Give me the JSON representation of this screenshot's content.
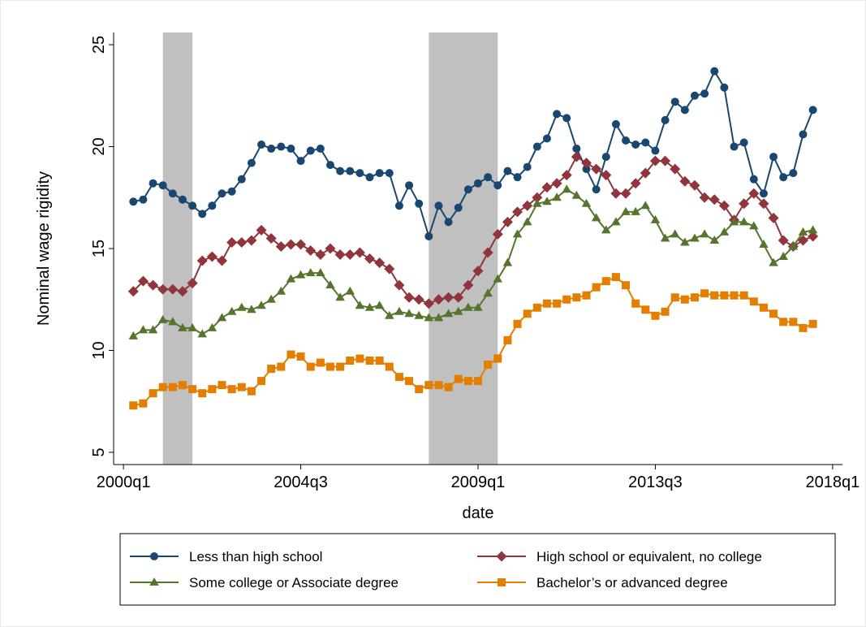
{
  "chart_data": {
    "type": "line",
    "x_label": "date",
    "y_label": "Nominal wage rigidity",
    "x": [
      "2000q2",
      "2000q3",
      "2000q4",
      "2001q1",
      "2001q2",
      "2001q3",
      "2001q4",
      "2002q1",
      "2002q2",
      "2002q3",
      "2002q4",
      "2003q1",
      "2003q2",
      "2003q3",
      "2003q4",
      "2004q1",
      "2004q2",
      "2004q3",
      "2004q4",
      "2005q1",
      "2005q2",
      "2005q3",
      "2005q4",
      "2006q1",
      "2006q2",
      "2006q3",
      "2006q4",
      "2007q1",
      "2007q2",
      "2007q3",
      "2007q4",
      "2008q1",
      "2008q2",
      "2008q3",
      "2008q4",
      "2009q1",
      "2009q2",
      "2009q3",
      "2009q4",
      "2010q1",
      "2010q2",
      "2010q3",
      "2010q4",
      "2011q1",
      "2011q2",
      "2011q3",
      "2011q4",
      "2012q1",
      "2012q2",
      "2012q3",
      "2012q4",
      "2013q1",
      "2013q2",
      "2013q3",
      "2013q4",
      "2014q1",
      "2014q2",
      "2014q3",
      "2014q4",
      "2015q1",
      "2015q2",
      "2015q3",
      "2015q4",
      "2016q1",
      "2016q2",
      "2016q3",
      "2016q4",
      "2017q1",
      "2017q2",
      "2017q3"
    ],
    "xlim": [
      "1999q4",
      "2018q2"
    ],
    "xticks": [
      "2000q1",
      "2004q3",
      "2009q1",
      "2013q3",
      "2018q1"
    ],
    "ylim": [
      4.4,
      25.6
    ],
    "yticks": [
      5,
      10,
      15,
      20,
      25
    ],
    "recessions": [
      [
        "2001q1",
        "2001q3"
      ],
      [
        "2007q4",
        "2009q2"
      ]
    ],
    "recession_color": "#c0c0c0",
    "series": [
      {
        "name": "Less than high school",
        "color": "#1a476f",
        "marker": "circle",
        "values": [
          17.3,
          17.4,
          18.2,
          18.1,
          17.7,
          17.4,
          17.1,
          16.7,
          17.1,
          17.7,
          17.8,
          18.4,
          19.2,
          20.1,
          19.9,
          20.0,
          19.9,
          19.3,
          19.8,
          19.9,
          19.1,
          18.8,
          18.8,
          18.7,
          18.5,
          18.7,
          18.7,
          17.1,
          18.1,
          17.2,
          15.6,
          17.1,
          16.3,
          17.0,
          17.9,
          18.2,
          18.5,
          18.1,
          18.8,
          18.5,
          19.0,
          20.0,
          20.4,
          21.6,
          21.4,
          19.9,
          18.9,
          17.9,
          19.5,
          21.1,
          20.3,
          20.1,
          20.2,
          19.8,
          21.3,
          22.2,
          21.8,
          22.5,
          22.6,
          23.7,
          22.9,
          20.0,
          20.2,
          18.4,
          17.7,
          19.5,
          18.5,
          18.7,
          20.6,
          21.8
        ]
      },
      {
        "name": "High school or equivalent, no college",
        "color": "#90353b",
        "marker": "diamond",
        "values": [
          12.9,
          13.4,
          13.2,
          13.0,
          13.0,
          12.9,
          13.3,
          14.4,
          14.6,
          14.4,
          15.3,
          15.3,
          15.4,
          15.9,
          15.5,
          15.1,
          15.2,
          15.2,
          14.9,
          14.7,
          15.0,
          14.7,
          14.7,
          14.8,
          14.5,
          14.3,
          14.0,
          13.2,
          12.6,
          12.5,
          12.3,
          12.5,
          12.6,
          12.6,
          13.2,
          13.9,
          14.8,
          15.7,
          16.3,
          16.8,
          17.1,
          17.5,
          18.0,
          18.2,
          18.6,
          19.5,
          19.2,
          18.9,
          18.6,
          17.7,
          17.7,
          18.2,
          18.7,
          19.3,
          19.3,
          18.9,
          18.3,
          18.1,
          17.5,
          17.4,
          17.1,
          16.4,
          17.2,
          17.7,
          17.2,
          16.5,
          15.4,
          15.1,
          15.4,
          15.6
        ]
      },
      {
        "name": "Some college or Associate degree",
        "color": "#55752f",
        "marker": "triangle",
        "values": [
          10.7,
          11.0,
          11.0,
          11.5,
          11.4,
          11.1,
          11.1,
          10.8,
          11.1,
          11.6,
          11.9,
          12.1,
          12.0,
          12.2,
          12.5,
          12.9,
          13.5,
          13.7,
          13.8,
          13.8,
          13.2,
          12.6,
          12.9,
          12.2,
          12.1,
          12.2,
          11.7,
          11.9,
          11.8,
          11.7,
          11.6,
          11.6,
          11.8,
          11.9,
          12.1,
          12.1,
          12.8,
          13.5,
          14.3,
          15.7,
          16.3,
          17.2,
          17.3,
          17.5,
          17.9,
          17.6,
          17.2,
          16.5,
          15.9,
          16.3,
          16.8,
          16.8,
          17.1,
          16.4,
          15.5,
          15.7,
          15.3,
          15.5,
          15.7,
          15.4,
          15.8,
          16.3,
          16.3,
          16.1,
          15.2,
          14.3,
          14.6,
          15.1,
          15.8,
          15.9
        ]
      },
      {
        "name": "Bachelor’s or advanced degree",
        "color": "#e37e00",
        "marker": "square",
        "values": [
          7.3,
          7.4,
          7.9,
          8.2,
          8.2,
          8.3,
          8.1,
          7.9,
          8.1,
          8.3,
          8.1,
          8.2,
          8.0,
          8.5,
          9.1,
          9.2,
          9.8,
          9.7,
          9.2,
          9.4,
          9.2,
          9.2,
          9.5,
          9.6,
          9.5,
          9.5,
          9.2,
          8.7,
          8.5,
          8.1,
          8.3,
          8.3,
          8.2,
          8.6,
          8.5,
          8.5,
          9.3,
          9.6,
          10.5,
          11.3,
          11.8,
          12.1,
          12.3,
          12.3,
          12.5,
          12.6,
          12.7,
          13.1,
          13.4,
          13.6,
          13.2,
          12.3,
          12.0,
          11.7,
          11.9,
          12.6,
          12.5,
          12.6,
          12.8,
          12.7,
          12.7,
          12.7,
          12.7,
          12.4,
          12.1,
          11.8,
          11.4,
          11.4,
          11.1,
          11.3
        ]
      }
    ]
  }
}
